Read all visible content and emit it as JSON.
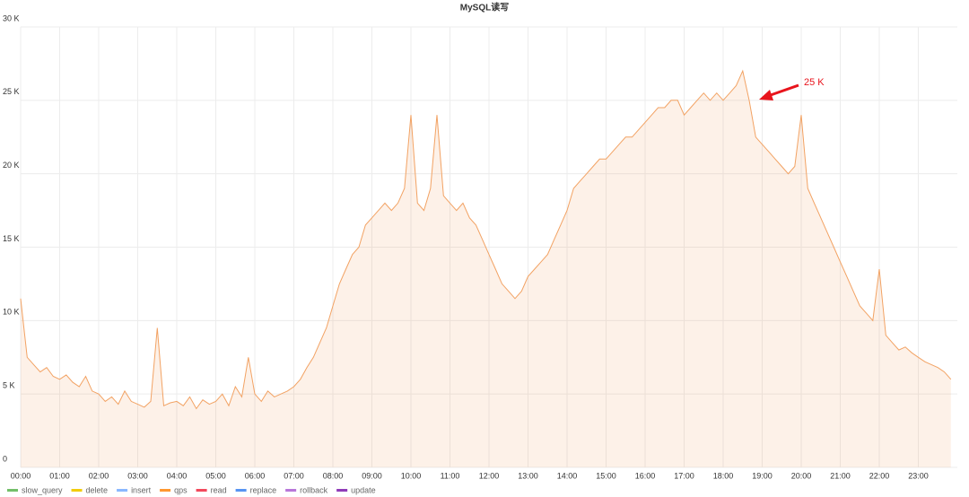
{
  "chart_data": {
    "type": "line",
    "title": "MySQL读写",
    "x": [
      "00:00",
      "00:10",
      "00:20",
      "00:30",
      "00:40",
      "00:50",
      "01:00",
      "01:10",
      "01:20",
      "01:30",
      "01:40",
      "01:50",
      "02:00",
      "02:10",
      "02:20",
      "02:30",
      "02:40",
      "02:50",
      "03:00",
      "03:10",
      "03:20",
      "03:30",
      "03:40",
      "03:50",
      "04:00",
      "04:10",
      "04:20",
      "04:30",
      "04:40",
      "04:50",
      "05:00",
      "05:10",
      "05:20",
      "05:30",
      "05:40",
      "05:50",
      "06:00",
      "06:10",
      "06:20",
      "06:30",
      "06:40",
      "06:50",
      "07:00",
      "07:10",
      "07:20",
      "07:30",
      "07:40",
      "07:50",
      "08:00",
      "08:10",
      "08:20",
      "08:30",
      "08:40",
      "08:50",
      "09:00",
      "09:10",
      "09:20",
      "09:30",
      "09:40",
      "09:50",
      "10:00",
      "10:10",
      "10:20",
      "10:30",
      "10:40",
      "10:50",
      "11:00",
      "11:10",
      "11:20",
      "11:30",
      "11:40",
      "11:50",
      "12:00",
      "12:10",
      "12:20",
      "12:30",
      "12:40",
      "12:50",
      "13:00",
      "13:10",
      "13:20",
      "13:30",
      "13:40",
      "13:50",
      "14:00",
      "14:10",
      "14:20",
      "14:30",
      "14:40",
      "14:50",
      "15:00",
      "15:10",
      "15:20",
      "15:30",
      "15:40",
      "15:50",
      "16:00",
      "16:10",
      "16:20",
      "16:30",
      "16:40",
      "16:50",
      "17:00",
      "17:10",
      "17:20",
      "17:30",
      "17:40",
      "17:50",
      "18:00",
      "18:10",
      "18:20",
      "18:30",
      "18:40",
      "18:50",
      "19:00",
      "19:10",
      "19:20",
      "19:30",
      "19:40",
      "19:50",
      "20:00",
      "20:10",
      "20:20",
      "20:30",
      "20:40",
      "20:50",
      "21:00",
      "21:10",
      "21:20",
      "21:30",
      "21:40",
      "21:50",
      "22:00",
      "22:10",
      "22:20",
      "22:30",
      "22:40",
      "22:50",
      "23:00",
      "23:10",
      "23:20",
      "23:30",
      "23:40",
      "23:50"
    ],
    "series": [
      {
        "name": "qps",
        "color": "#f2a263",
        "values": [
          11500,
          7500,
          7000,
          6500,
          6800,
          6200,
          6000,
          6300,
          5800,
          5500,
          6200,
          5200,
          5000,
          4500,
          4800,
          4300,
          5200,
          4500,
          4300,
          4100,
          4500,
          9500,
          4200,
          4400,
          4500,
          4200,
          4800,
          4000,
          4600,
          4300,
          4500,
          5000,
          4200,
          5500,
          4800,
          7500,
          5000,
          4500,
          5200,
          4800,
          5000,
          5200,
          5500,
          6000,
          6800,
          7500,
          8500,
          9500,
          11000,
          12500,
          13500,
          14500,
          15000,
          16500,
          17000,
          17500,
          18000,
          17500,
          18000,
          19000,
          24000,
          18000,
          17500,
          19000,
          24000,
          18500,
          18000,
          17500,
          18000,
          17000,
          16500,
          15500,
          14500,
          13500,
          12500,
          12000,
          11500,
          12000,
          13000,
          13500,
          14000,
          14500,
          15500,
          16500,
          17500,
          19000,
          19500,
          20000,
          20500,
          21000,
          21000,
          21500,
          22000,
          22500,
          22500,
          23000,
          23500,
          24000,
          24500,
          24500,
          25000,
          25000,
          24000,
          24500,
          25000,
          25500,
          25000,
          25500,
          25000,
          25500,
          26000,
          27000,
          25000,
          22500,
          22000,
          21500,
          21000,
          20500,
          20000,
          20500,
          24000,
          19000,
          18000,
          17000,
          16000,
          15000,
          14000,
          13000,
          12000,
          11000,
          10500,
          10000,
          13500,
          9000,
          8500,
          8000,
          8200,
          7800,
          7500,
          7200,
          7000,
          6800,
          6500,
          6000
        ]
      }
    ],
    "legend": [
      {
        "name": "slow_query",
        "color": "#73bf69"
      },
      {
        "name": "delete",
        "color": "#f2cc0c"
      },
      {
        "name": "insert",
        "color": "#8ab8ff"
      },
      {
        "name": "qps",
        "color": "#ff9830"
      },
      {
        "name": "read",
        "color": "#f2495c"
      },
      {
        "name": "replace",
        "color": "#5794f2"
      },
      {
        "name": "rollback",
        "color": "#b877d9"
      },
      {
        "name": "update",
        "color": "#8f3bb8"
      }
    ],
    "xticks": [
      "00:00",
      "01:00",
      "02:00",
      "03:00",
      "04:00",
      "05:00",
      "06:00",
      "07:00",
      "08:00",
      "09:00",
      "10:00",
      "11:00",
      "12:00",
      "13:00",
      "14:00",
      "15:00",
      "16:00",
      "17:00",
      "18:00",
      "19:00",
      "20:00",
      "21:00",
      "22:00",
      "23:00"
    ],
    "ylim": [
      0,
      30000
    ],
    "yticks": [
      0,
      {
        "value": 5000,
        "label": "5 K"
      },
      {
        "value": 10000,
        "label": "10 K"
      },
      {
        "value": 15000,
        "label": "15 K"
      },
      {
        "value": 20000,
        "label": "20 K"
      },
      {
        "value": 25000,
        "label": "25 K"
      },
      {
        "value": 30000,
        "label": "30 K"
      }
    ],
    "grid": true,
    "annotation": {
      "text": "25 K",
      "color": "#e8141c"
    }
  }
}
